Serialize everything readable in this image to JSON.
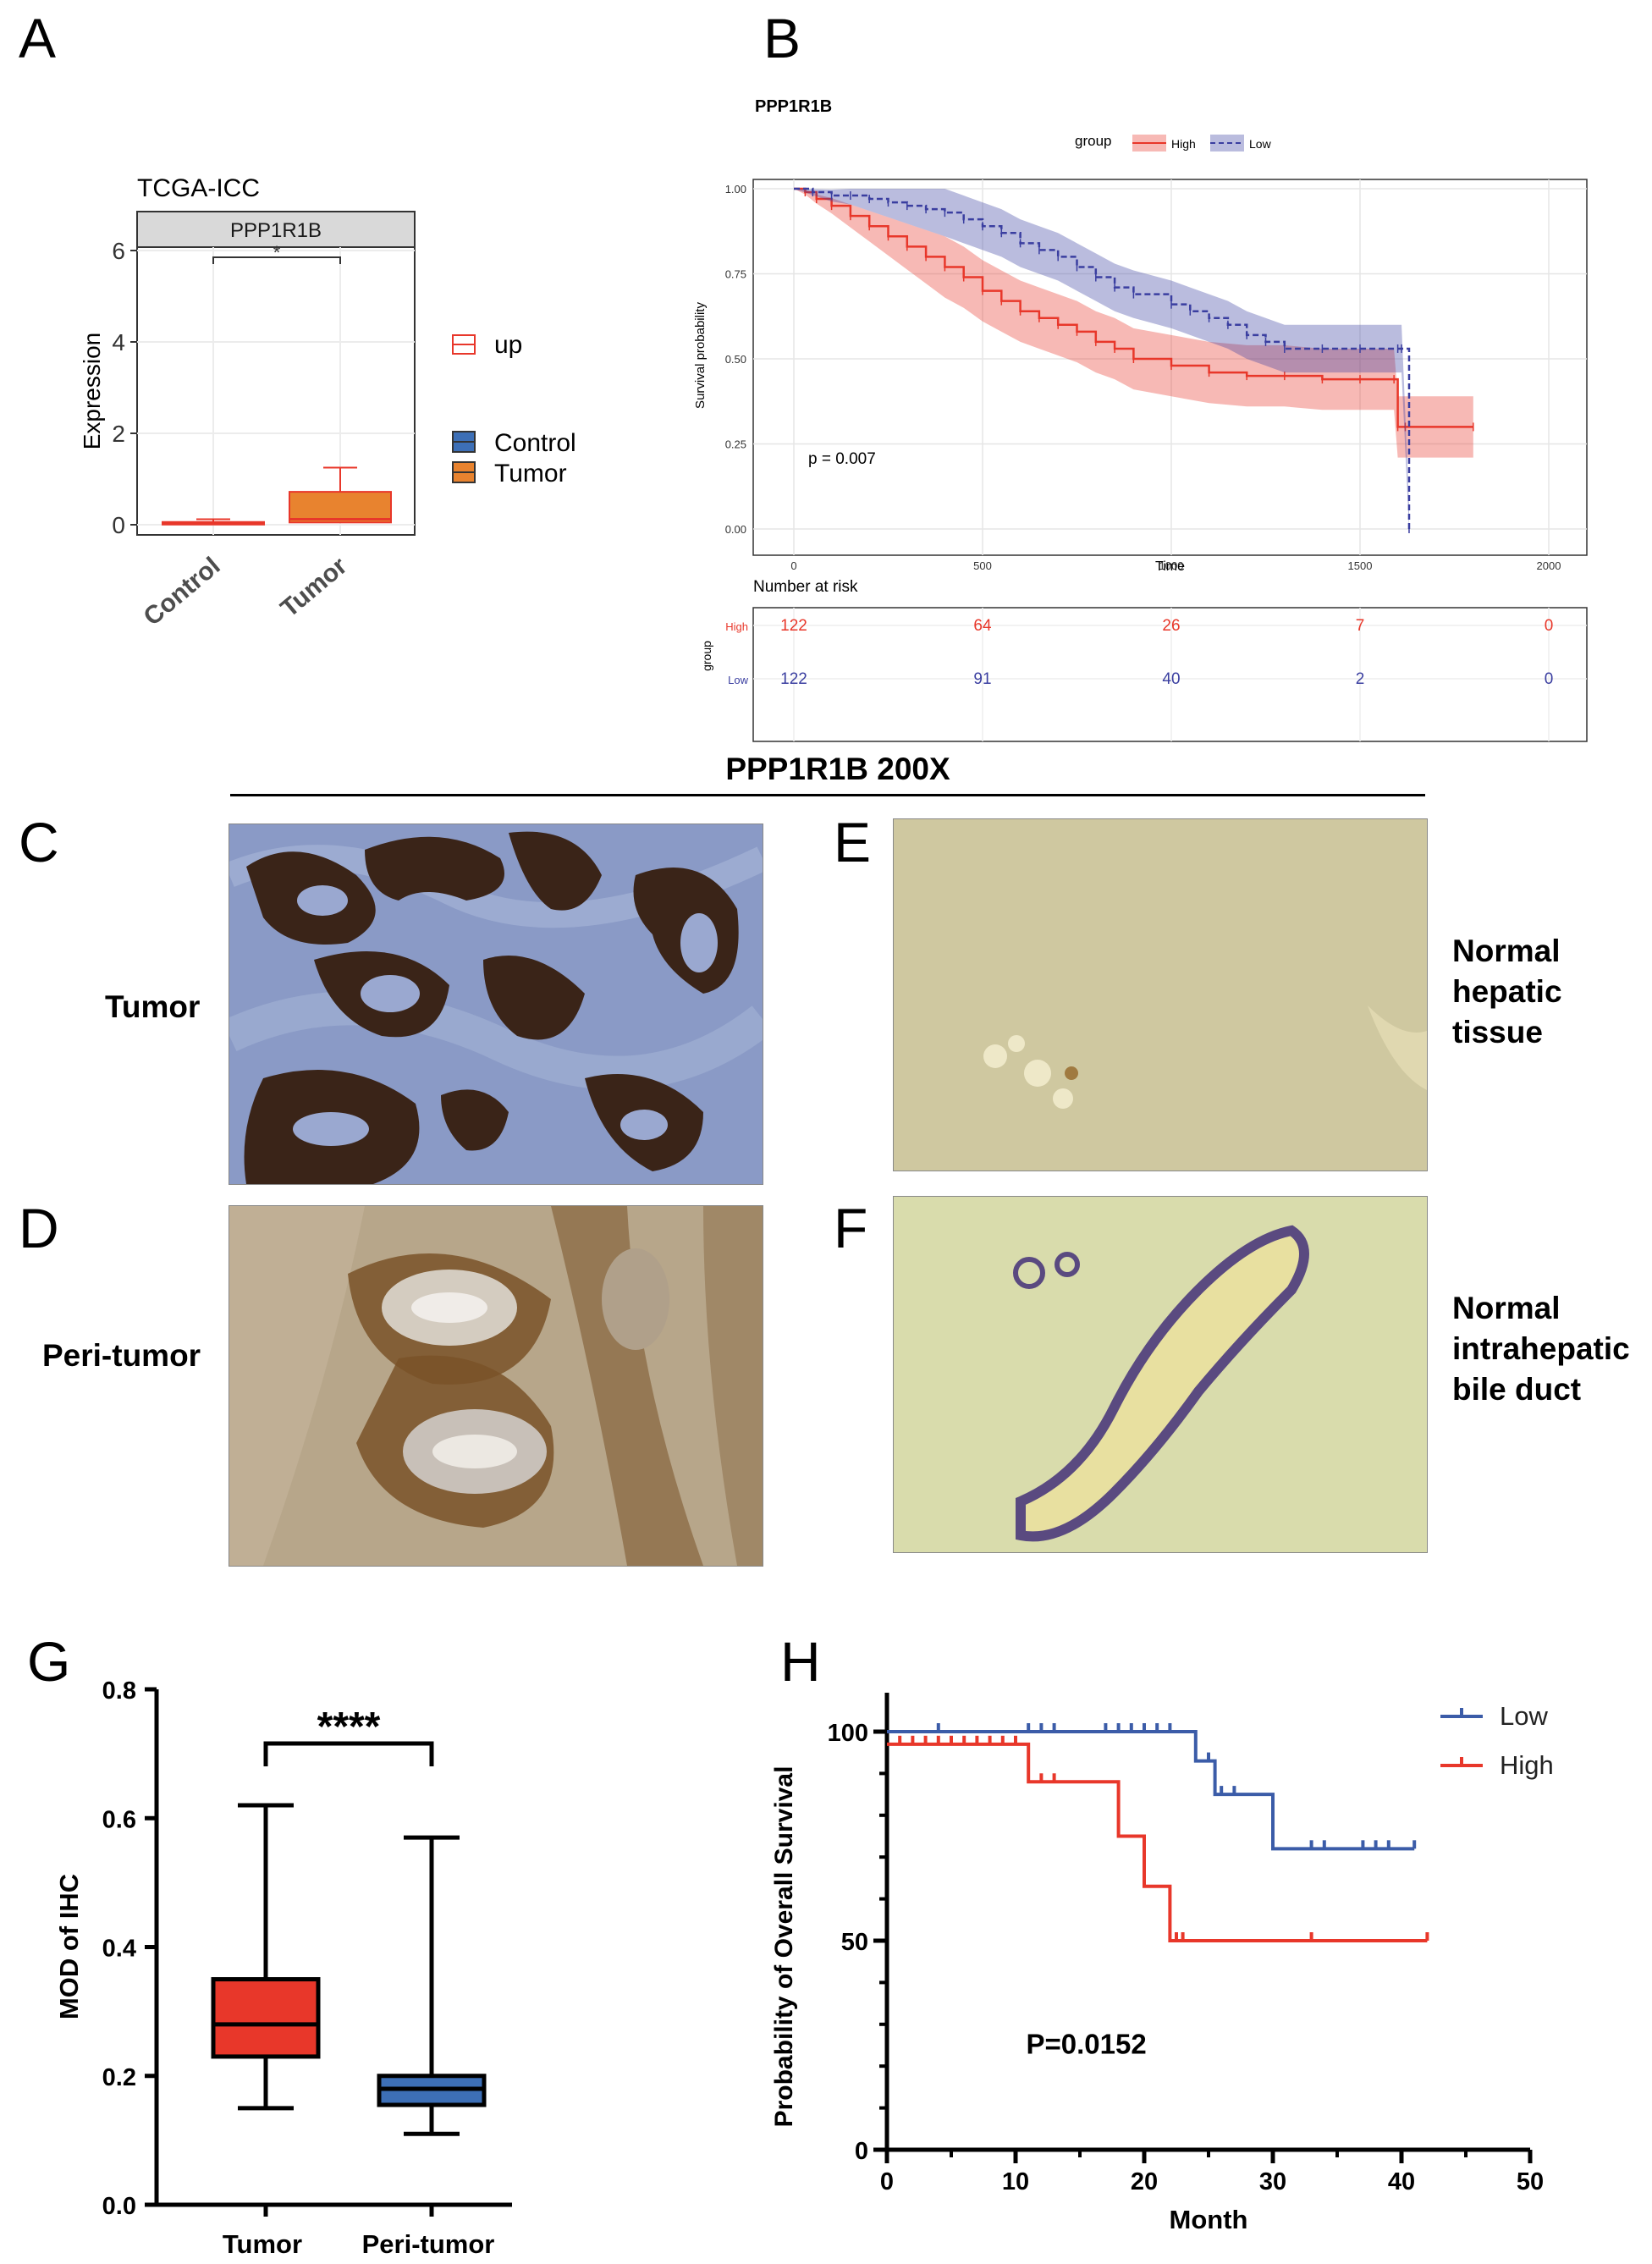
{
  "panels": {
    "A": "A",
    "B": "B",
    "C": "C",
    "D": "D",
    "E": "E",
    "F": "F",
    "G": "G",
    "H": "H"
  },
  "ihc_header": "PPP1R1B  200X",
  "image_labels": {
    "tumor": "Tumor",
    "peri_tumor": "Peri-tumor",
    "normal_hepatic": [
      "Normal",
      "hepatic",
      "tissue"
    ],
    "normal_bile": [
      "Normal",
      "intrahepatic",
      "bile duct"
    ]
  },
  "colors": {
    "tumor_stroma": "#7f8fc0",
    "tumor_gland": "#3a2418",
    "peri": "#b7a68a",
    "peri_brown": "#7a5228",
    "normal": "#cfc8a0",
    "bile_stroma": "#d9dcac",
    "bile_duct": "#5a4a80"
  },
  "chart_data": [
    {
      "id": "A",
      "type": "box",
      "title": "TCGA-ICC",
      "facet": "PPP1R1B",
      "ylabel": "Expression",
      "xlabel": "",
      "categories": [
        "Control",
        "Tumor"
      ],
      "ylim": [
        0,
        6
      ],
      "yticks": [
        0,
        2,
        4,
        6
      ],
      "series": [
        {
          "name": "Control",
          "color": "#3d6fb6",
          "min": 0.0,
          "q1": 0.02,
          "median": 0.04,
          "q3": 0.06,
          "max": 0.12
        },
        {
          "name": "Tumor",
          "color": "#e8832f",
          "min": 0.0,
          "q1": 0.05,
          "median": 0.12,
          "q3": 0.72,
          "max": 1.25
        }
      ],
      "significance": "*",
      "legend": [
        {
          "title": "",
          "entries": [
            "up"
          ]
        },
        {
          "title": "",
          "entries": [
            "Control",
            "Tumor"
          ]
        }
      ]
    },
    {
      "id": "B",
      "type": "line",
      "title": "PPP1R1B",
      "legend_title": "group",
      "legend_entries": [
        "High",
        "Low"
      ],
      "xlabel": "Time",
      "ylabel": "Survival probability",
      "xlim": [
        0,
        2000
      ],
      "ylim": [
        0,
        1
      ],
      "xticks": [
        0,
        500,
        1000,
        1500,
        2000
      ],
      "yticks": [
        "0.00",
        "0.25",
        "0.50",
        "0.75",
        "1.00"
      ],
      "annotation": "p = 0.007",
      "series": [
        {
          "name": "High",
          "color": "#e8372a",
          "x": [
            0,
            30,
            60,
            100,
            150,
            200,
            250,
            300,
            350,
            400,
            450,
            500,
            550,
            600,
            650,
            700,
            750,
            800,
            850,
            900,
            1000,
            1100,
            1200,
            1300,
            1400,
            1500,
            1590,
            1600,
            1620,
            1800
          ],
          "y": [
            1.0,
            0.99,
            0.97,
            0.95,
            0.92,
            0.89,
            0.86,
            0.83,
            0.8,
            0.77,
            0.74,
            0.7,
            0.67,
            0.64,
            0.62,
            0.6,
            0.58,
            0.55,
            0.53,
            0.5,
            0.48,
            0.46,
            0.45,
            0.45,
            0.44,
            0.44,
            0.44,
            0.3,
            0.3,
            0.3
          ]
        },
        {
          "name": "Low",
          "color": "#3a3ea0",
          "x": [
            0,
            50,
            100,
            150,
            200,
            250,
            300,
            350,
            400,
            450,
            500,
            550,
            600,
            650,
            700,
            750,
            800,
            850,
            900,
            1000,
            1050,
            1100,
            1150,
            1200,
            1250,
            1300,
            1400,
            1500,
            1600,
            1610,
            1630
          ],
          "y": [
            1.0,
            0.99,
            0.98,
            0.98,
            0.97,
            0.96,
            0.95,
            0.94,
            0.93,
            0.91,
            0.89,
            0.87,
            0.84,
            0.82,
            0.8,
            0.77,
            0.74,
            0.71,
            0.69,
            0.66,
            0.64,
            0.62,
            0.6,
            0.57,
            0.55,
            0.53,
            0.53,
            0.53,
            0.53,
            0.53,
            0.0
          ]
        }
      ],
      "risk_table": {
        "title": "Number at risk",
        "ylabel": "group",
        "xlabel": "Time",
        "times": [
          0,
          500,
          1000,
          1500,
          2000
        ],
        "rows": [
          {
            "name": "High",
            "color": "#e8372a",
            "values": [
              122,
              64,
              26,
              7,
              0
            ]
          },
          {
            "name": "Low",
            "color": "#3a3ea0",
            "values": [
              122,
              91,
              40,
              2,
              0
            ]
          }
        ]
      }
    },
    {
      "id": "G",
      "type": "box",
      "title": "",
      "ylabel": "MOD of IHC",
      "xlabel": "",
      "categories": [
        "Tumor",
        "Peri-tumor"
      ],
      "ylim": [
        0.0,
        0.8
      ],
      "yticks": [
        "0.0",
        "0.2",
        "0.4",
        "0.6",
        "0.8"
      ],
      "series": [
        {
          "name": "Tumor",
          "color": "#e8372a",
          "min": 0.15,
          "q1": 0.23,
          "median": 0.28,
          "q3": 0.35,
          "max": 0.62
        },
        {
          "name": "Peri-tumor",
          "color": "#3d6fb6",
          "min": 0.11,
          "q1": 0.155,
          "median": 0.18,
          "q3": 0.2,
          "max": 0.57
        }
      ],
      "significance": "****"
    },
    {
      "id": "H",
      "type": "line",
      "xlabel": "Month",
      "ylabel": "Probability of Overall Survival",
      "xlim": [
        0,
        50
      ],
      "ylim": [
        0,
        100
      ],
      "xticks": [
        0,
        10,
        20,
        30,
        40,
        50
      ],
      "yticks": [
        0,
        50,
        100
      ],
      "annotation": "P=0.0152",
      "legend_entries": [
        "Low",
        "High"
      ],
      "series": [
        {
          "name": "Low",
          "color": "#3b5ca8",
          "x": [
            0,
            24,
            24,
            25.5,
            25.5,
            30,
            30,
            41
          ],
          "y": [
            100,
            100,
            93,
            93,
            85,
            85,
            72,
            72
          ],
          "censor_x": [
            4,
            11,
            12,
            13,
            17,
            18,
            19,
            20,
            21,
            22,
            25,
            26,
            27,
            33,
            34,
            37,
            38,
            39,
            41
          ],
          "censor_y": [
            100,
            100,
            100,
            100,
            100,
            100,
            100,
            100,
            100,
            100,
            93,
            85,
            85,
            72,
            72,
            72,
            72,
            72,
            72
          ]
        },
        {
          "name": "High",
          "color": "#e8372a",
          "x": [
            0,
            11,
            11,
            18,
            18,
            20,
            20,
            22,
            22,
            42
          ],
          "y": [
            97,
            97,
            88,
            88,
            75,
            75,
            63,
            63,
            50,
            50
          ],
          "censor_x": [
            1,
            2,
            3,
            4,
            5,
            6,
            7,
            8,
            9,
            10,
            12,
            13,
            22.5,
            23,
            33,
            42
          ],
          "censor_y": [
            97,
            97,
            97,
            97,
            97,
            97,
            97,
            97,
            97,
            97,
            88,
            88,
            50,
            50,
            50,
            50
          ]
        }
      ]
    }
  ]
}
